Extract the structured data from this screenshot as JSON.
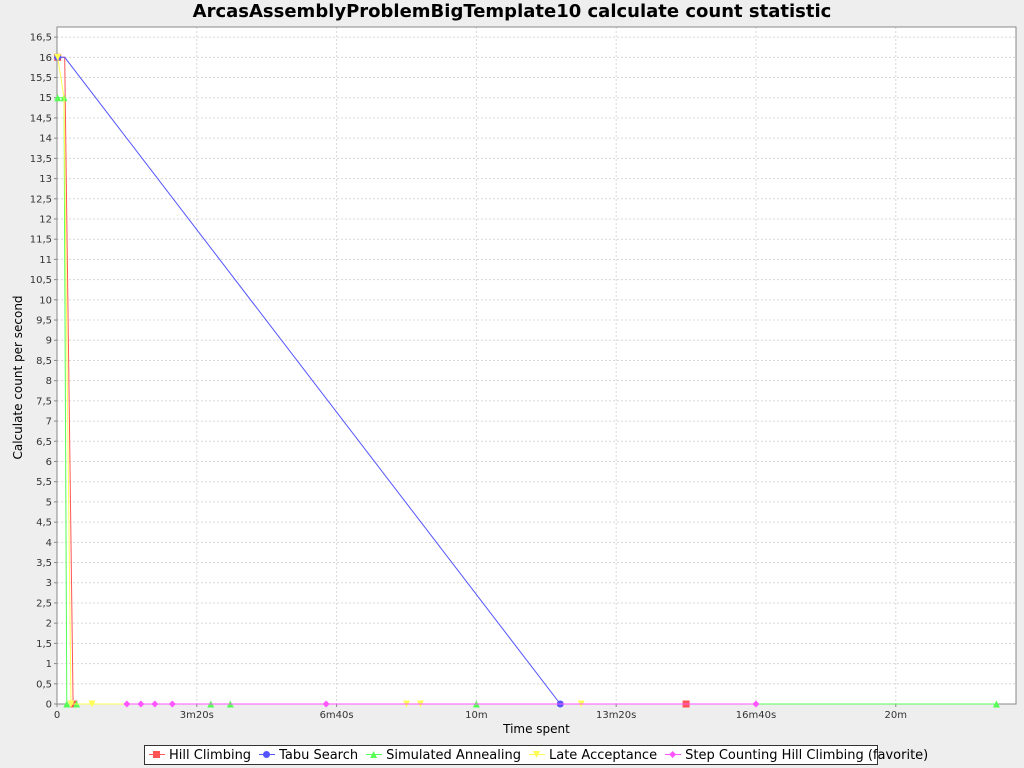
{
  "chart_data": {
    "type": "line",
    "title": "ArcasAssemblyProblemBigTemplate10 calculate count statistic",
    "xlabel": "Time spent",
    "ylabel": "Calculate count per second",
    "xlim": [
      0,
      1372
    ],
    "ylim": [
      0,
      16.75
    ],
    "grid": true,
    "legend_position": "bottom",
    "x_ticks": [
      {
        "value": 0,
        "label": "0"
      },
      {
        "value": 200,
        "label": "3m20s"
      },
      {
        "value": 400,
        "label": "6m40s"
      },
      {
        "value": 600,
        "label": "10m"
      },
      {
        "value": 800,
        "label": "13m20s"
      },
      {
        "value": 1000,
        "label": "16m40s"
      },
      {
        "value": 1200,
        "label": "20m"
      }
    ],
    "y_ticks": [
      {
        "value": 0,
        "label": "0"
      },
      {
        "value": 0.5,
        "label": "0,5"
      },
      {
        "value": 1,
        "label": "1"
      },
      {
        "value": 1.5,
        "label": "1,5"
      },
      {
        "value": 2,
        "label": "2"
      },
      {
        "value": 2.5,
        "label": "2,5"
      },
      {
        "value": 3,
        "label": "3"
      },
      {
        "value": 3.5,
        "label": "3,5"
      },
      {
        "value": 4,
        "label": "4"
      },
      {
        "value": 4.5,
        "label": "4,5"
      },
      {
        "value": 5,
        "label": "5"
      },
      {
        "value": 5.5,
        "label": "5,5"
      },
      {
        "value": 6,
        "label": "6"
      },
      {
        "value": 6.5,
        "label": "6,5"
      },
      {
        "value": 7,
        "label": "7"
      },
      {
        "value": 7.5,
        "label": "7,5"
      },
      {
        "value": 8,
        "label": "8"
      },
      {
        "value": 8.5,
        "label": "8,5"
      },
      {
        "value": 9,
        "label": "9"
      },
      {
        "value": 9.5,
        "label": "9,5"
      },
      {
        "value": 10,
        "label": "10"
      },
      {
        "value": 10.5,
        "label": "10,5"
      },
      {
        "value": 11,
        "label": "11"
      },
      {
        "value": 11.5,
        "label": "11,5"
      },
      {
        "value": 12,
        "label": "12"
      },
      {
        "value": 12.5,
        "label": "12,5"
      },
      {
        "value": 13,
        "label": "13"
      },
      {
        "value": 13.5,
        "label": "13,5"
      },
      {
        "value": 14,
        "label": "14"
      },
      {
        "value": 14.5,
        "label": "14,5"
      },
      {
        "value": 15,
        "label": "15"
      },
      {
        "value": 15.5,
        "label": "15,5"
      },
      {
        "value": 16,
        "label": "16"
      },
      {
        "value": 16.5,
        "label": "16,5"
      }
    ],
    "series": [
      {
        "name": "Hill Climbing",
        "color": "#ff5555",
        "marker": "square",
        "points": [
          [
            1,
            16
          ],
          [
            11,
            16
          ],
          [
            23,
            0
          ],
          [
            24,
            0
          ],
          [
            110,
            0
          ],
          [
            900,
            0
          ],
          [
            1000,
            0
          ]
        ],
        "markers": [
          [
            1,
            16
          ],
          [
            24,
            0
          ],
          [
            900,
            0
          ]
        ]
      },
      {
        "name": "Tabu Search",
        "color": "#5555ff",
        "marker": "circle",
        "points": [
          [
            1,
            16
          ],
          [
            11,
            16
          ],
          [
            720,
            0
          ],
          [
            850,
            0
          ],
          [
            1000,
            0
          ]
        ],
        "markers": [
          [
            1,
            16
          ],
          [
            720,
            0
          ]
        ]
      },
      {
        "name": "Simulated Annealing",
        "color": "#55ff55",
        "marker": "triangle-up",
        "points": [
          [
            1,
            15
          ],
          [
            10,
            15
          ],
          [
            14,
            0
          ],
          [
            28,
            0
          ],
          [
            220,
            0
          ],
          [
            600,
            0
          ],
          [
            1344,
            0
          ]
        ],
        "markers": [
          [
            1,
            15
          ],
          [
            10,
            15
          ],
          [
            14,
            0
          ],
          [
            28,
            0
          ],
          [
            220,
            0
          ],
          [
            248,
            0
          ],
          [
            600,
            0
          ],
          [
            1344,
            0
          ]
        ]
      },
      {
        "name": "Late Acceptance",
        "color": "#ffff55",
        "marker": "triangle-down",
        "points": [
          [
            1,
            16
          ],
          [
            10,
            15
          ],
          [
            20,
            0
          ],
          [
            50,
            0
          ],
          [
            500,
            0
          ],
          [
            750,
            0
          ]
        ],
        "markers": [
          [
            1,
            16
          ],
          [
            20,
            0
          ],
          [
            50,
            0
          ],
          [
            500,
            0
          ],
          [
            520,
            0
          ],
          [
            750,
            0
          ]
        ]
      },
      {
        "name": "Step Counting Hill Climbing (favorite)",
        "color": "#ff55ff",
        "marker": "diamond",
        "points": [
          [
            100,
            0
          ],
          [
            120,
            0
          ],
          [
            140,
            0
          ],
          [
            165,
            0
          ],
          [
            385,
            0
          ],
          [
            1000,
            0
          ]
        ],
        "markers": [
          [
            100,
            0
          ],
          [
            120,
            0
          ],
          [
            140,
            0
          ],
          [
            165,
            0
          ],
          [
            385,
            0
          ],
          [
            1000,
            0
          ]
        ]
      }
    ]
  }
}
